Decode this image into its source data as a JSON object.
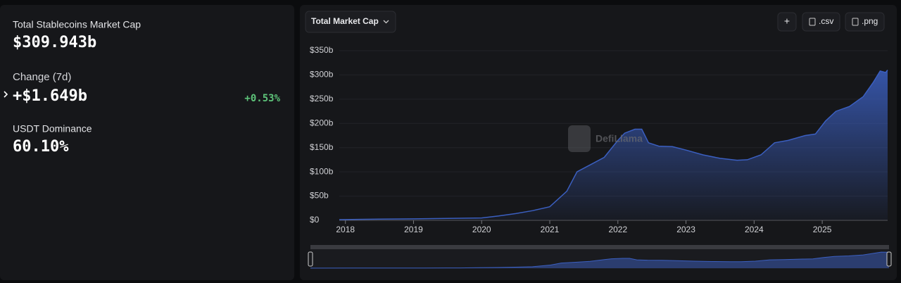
{
  "stats": {
    "market_cap_label": "Total Stablecoins Market Cap",
    "market_cap_value": "$309.943b",
    "change_label": "Change (7d)",
    "change_value": "+$1.649b",
    "change_percent": "+0.53%",
    "dominance_label": "USDT Dominance",
    "dominance_value": "60.10%"
  },
  "controls": {
    "dropdown": "Total Market Cap",
    "add": "+",
    "csv": ".csv",
    "png": ".png"
  },
  "chart_data": {
    "type": "area",
    "watermark": "DefiLlama",
    "color": "#3b5fc0",
    "grid": true,
    "x": [
      2017.91,
      2018.5,
      2019.0,
      2019.5,
      2020.0,
      2020.25,
      2020.5,
      2020.75,
      2021.0,
      2021.25,
      2021.4,
      2021.6,
      2021.8,
      2022.0,
      2022.1,
      2022.25,
      2022.35,
      2022.45,
      2022.6,
      2022.8,
      2023.0,
      2023.25,
      2023.5,
      2023.75,
      2023.9,
      2024.1,
      2024.3,
      2024.5,
      2024.75,
      2024.9,
      2025.05,
      2025.2,
      2025.4,
      2025.6,
      2025.75,
      2025.85,
      2025.93,
      2025.96
    ],
    "values": [
      1.5,
      2.5,
      3,
      4,
      5,
      9,
      14,
      20,
      28,
      60,
      100,
      115,
      130,
      165,
      180,
      188,
      188,
      160,
      153,
      152,
      145,
      135,
      128,
      124,
      125,
      135,
      160,
      165,
      175,
      178,
      205,
      225,
      235,
      255,
      285,
      308,
      305,
      310
    ],
    "xlim": [
      2017.91,
      2025.96
    ],
    "xticks": [
      2018,
      2019,
      2020,
      2021,
      2022,
      2023,
      2024,
      2025
    ],
    "ylim": [
      0,
      350
    ],
    "yticks": [
      {
        "value": 0,
        "label": "$0"
      },
      {
        "value": 50,
        "label": "$50b"
      },
      {
        "value": 100,
        "label": "$100b"
      },
      {
        "value": 150,
        "label": "$150b"
      },
      {
        "value": 200,
        "label": "$200b"
      },
      {
        "value": 250,
        "label": "$250b"
      },
      {
        "value": 300,
        "label": "$300b"
      },
      {
        "value": 350,
        "label": "$350b"
      }
    ]
  }
}
